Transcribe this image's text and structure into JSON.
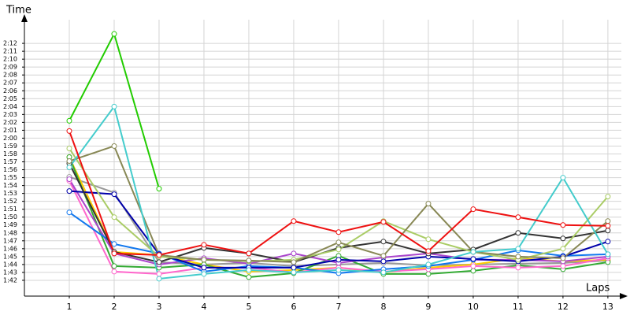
{
  "chart_data": {
    "type": "line",
    "y_axis_label": "Time",
    "x_axis_label": "Laps",
    "x": [
      1,
      2,
      3,
      4,
      5,
      6,
      7,
      8,
      9,
      10,
      11,
      12,
      13
    ],
    "xlim": [
      0,
      13.3
    ],
    "xticks": [
      1,
      2,
      3,
      4,
      5,
      6,
      7,
      8,
      9,
      10,
      11,
      12,
      13
    ],
    "ylim": [
      100,
      135
    ],
    "yticks": [
      {
        "value": 102,
        "label": "1:42"
      },
      {
        "value": 103,
        "label": "1:43"
      },
      {
        "value": 104,
        "label": "1:44"
      },
      {
        "value": 105,
        "label": "1:45"
      },
      {
        "value": 106,
        "label": "1:46"
      },
      {
        "value": 107,
        "label": "1:47"
      },
      {
        "value": 108,
        "label": "1:48"
      },
      {
        "value": 109,
        "label": "1:49"
      },
      {
        "value": 110,
        "label": "1:50"
      },
      {
        "value": 111,
        "label": "1:51"
      },
      {
        "value": 112,
        "label": "1:52"
      },
      {
        "value": 113,
        "label": "1:53"
      },
      {
        "value": 114,
        "label": "1:54"
      },
      {
        "value": 115,
        "label": "1:55"
      },
      {
        "value": 116,
        "label": "1:56"
      },
      {
        "value": 117,
        "label": "1:57"
      },
      {
        "value": 118,
        "label": "1:58"
      },
      {
        "value": 119,
        "label": "1:59"
      },
      {
        "value": 120,
        "label": "2:00"
      },
      {
        "value": 121,
        "label": "2:01"
      },
      {
        "value": 122,
        "label": "2:02"
      },
      {
        "value": 123,
        "label": "2:03"
      },
      {
        "value": 124,
        "label": "2:04"
      },
      {
        "value": 125,
        "label": "2:05"
      },
      {
        "value": 126,
        "label": "2:06"
      },
      {
        "value": 127,
        "label": "2:07"
      },
      {
        "value": 128,
        "label": "2:08"
      },
      {
        "value": 129,
        "label": "2:09"
      },
      {
        "value": 130,
        "label": "2:10"
      },
      {
        "value": 131,
        "label": "2:11"
      },
      {
        "value": 132,
        "label": "2:12"
      }
    ],
    "grid": true,
    "series": [
      {
        "color": "#999999",
        "values": [
          115.1,
          113.1,
          104.3,
          104.0,
          104.2,
          103.8,
          104.0,
          104.2,
          103.9,
          104.0,
          104.1,
          104.2,
          104.5
        ]
      },
      {
        "color": "#ffcc00",
        "values": [
          117.6,
          105.6,
          105.2,
          104.0,
          103.1,
          103.3,
          103.6,
          103.0,
          103.6,
          104.0,
          104.8,
          104.4,
          104.6
        ]
      },
      {
        "color": "#33aa33",
        "values": [
          117.6,
          103.8,
          103.6,
          104.0,
          102.4,
          102.9,
          105.1,
          102.8,
          102.8,
          103.2,
          103.9,
          103.4,
          104.3
        ]
      },
      {
        "color": "#ff66cc",
        "values": [
          114.6,
          103.1,
          102.8,
          103.6,
          103.6,
          103.0,
          103.6,
          103.1,
          103.4,
          103.8,
          103.6,
          103.8,
          104.8
        ]
      },
      {
        "color": "#aa44cc",
        "values": [
          114.8,
          105.4,
          104.0,
          104.8,
          104.1,
          105.4,
          104.2,
          104.9,
          105.4,
          104.6,
          104.6,
          104.4,
          105.0
        ]
      },
      {
        "color": "#1177ee",
        "values": [
          110.6,
          106.6,
          105.4,
          103.1,
          103.8,
          103.6,
          102.9,
          103.4,
          103.8,
          104.6,
          105.8,
          105.1,
          105.3
        ]
      },
      {
        "color": "#0000aa",
        "values": [
          113.3,
          112.9,
          105.3,
          103.6,
          103.6,
          103.6,
          104.6,
          104.4,
          105.0,
          104.7,
          104.4,
          105.0,
          106.9
        ]
      },
      {
        "color": "#333333",
        "values": [
          116.8,
          105.6,
          104.3,
          106.1,
          105.4,
          104.3,
          106.1,
          106.9,
          105.4,
          105.9,
          108.0,
          107.3,
          108.3
        ]
      },
      {
        "color": "#aacc66",
        "values": [
          118.7,
          110.0,
          105.0,
          104.6,
          104.4,
          104.6,
          105.9,
          109.5,
          107.2,
          105.6,
          104.6,
          106.0,
          112.6
        ]
      },
      {
        "color": "#888855",
        "values": [
          117.1,
          119.0,
          105.2,
          104.6,
          104.5,
          104.3,
          106.8,
          105.1,
          111.7,
          105.6,
          105.0,
          104.8,
          109.5
        ]
      },
      {
        "color": "#44cccc",
        "values": [
          116.3,
          124.0,
          102.2,
          102.8,
          103.3,
          103.0,
          103.3,
          103.0,
          104.0,
          105.6,
          106.0,
          115.0,
          105.3
        ]
      },
      {
        "color": "#ee1111",
        "values": [
          120.9,
          105.4,
          105.2,
          106.5,
          105.4,
          109.5,
          108.1,
          109.4,
          105.7,
          111.0,
          110.0,
          109.0,
          108.9
        ]
      },
      {
        "color": "#22cc00",
        "values": [
          122.2,
          133.2,
          113.6,
          null,
          null,
          null,
          null,
          null,
          null,
          null,
          null,
          null,
          null
        ]
      }
    ]
  }
}
